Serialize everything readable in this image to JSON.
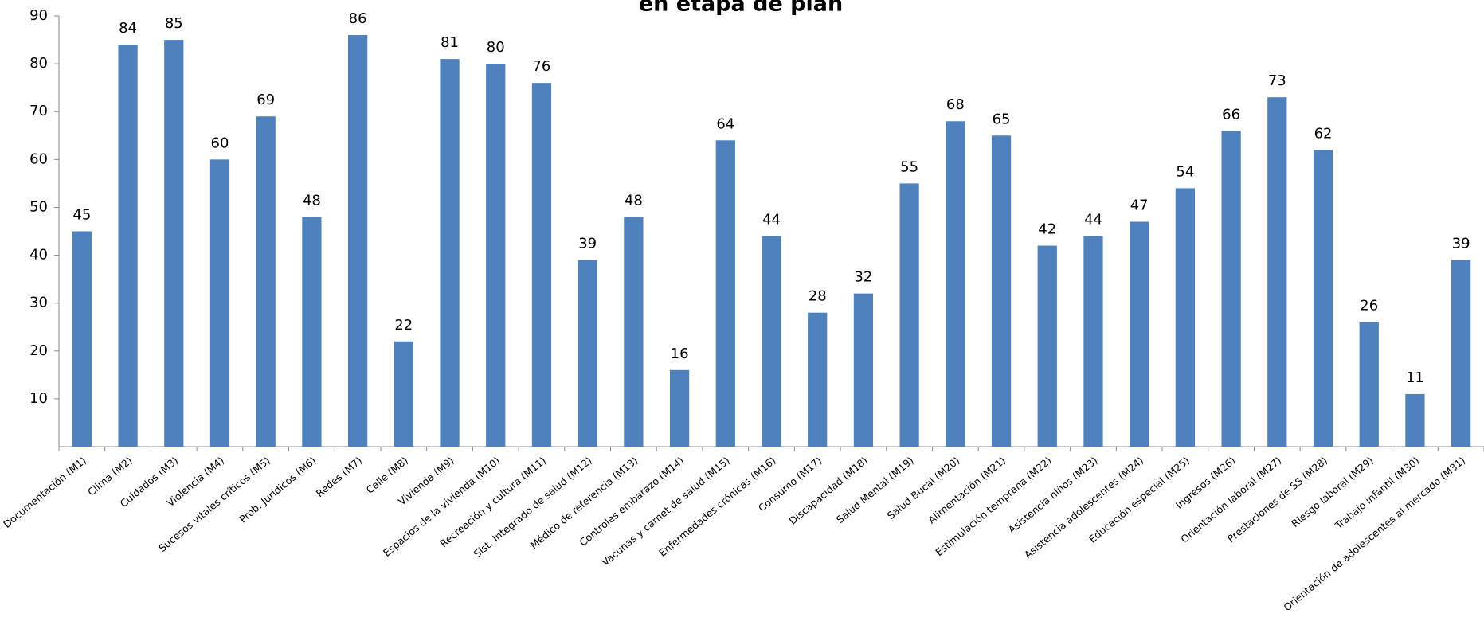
{
  "chart_data": {
    "type": "bar",
    "title": "en etapa de plan",
    "categories": [
      "Documentación (M1)",
      "Clima (M2)",
      "Cuidados (M3)",
      "Violencia (M4)",
      "Sucesos vitales críticos (M5)",
      "Prob. Jurídicos (M6)",
      "Redes (M7)",
      "Calle (M8)",
      "Vivienda (M9)",
      "Espacios de la vivienda (M10)",
      "Recreación y cultura (M11)",
      "Sist. Integrado de salud (M12)",
      "Médico de referencia (M13)",
      "Controles embarazo (M14)",
      "Vacunas y carnet de salud (M15)",
      "Enfermedades crónicas (M16)",
      "Consumo (M17)",
      "Discapacidad (M18)",
      "Salud Mental (M19)",
      "Salud Bucal (M20)",
      "Alimentación (M21)",
      "Estimulación temprana  (M22)",
      "Asistencia niños (M23)",
      "Asistencia adolescentes (M24)",
      "Educación especial (M25)",
      "Ingresos (M26)",
      "Orientación laboral (M27)",
      "Prestaciones de SS (M28)",
      "Riesgo laboral (M29)",
      "Trabajo infantil (M30)",
      "Orientación de adolescentes al mercado (M31)"
    ],
    "values": [
      45,
      84,
      85,
      60,
      69,
      48,
      86,
      22,
      81,
      80,
      76,
      39,
      48,
      16,
      64,
      44,
      28,
      32,
      55,
      68,
      65,
      42,
      44,
      47,
      54,
      66,
      73,
      62,
      26,
      11,
      39
    ],
    "color": "#4f81bd",
    "ylim": [
      0,
      90
    ],
    "yticks": [
      10,
      20,
      30,
      40,
      50,
      60,
      70,
      80,
      90
    ],
    "grid": false
  }
}
